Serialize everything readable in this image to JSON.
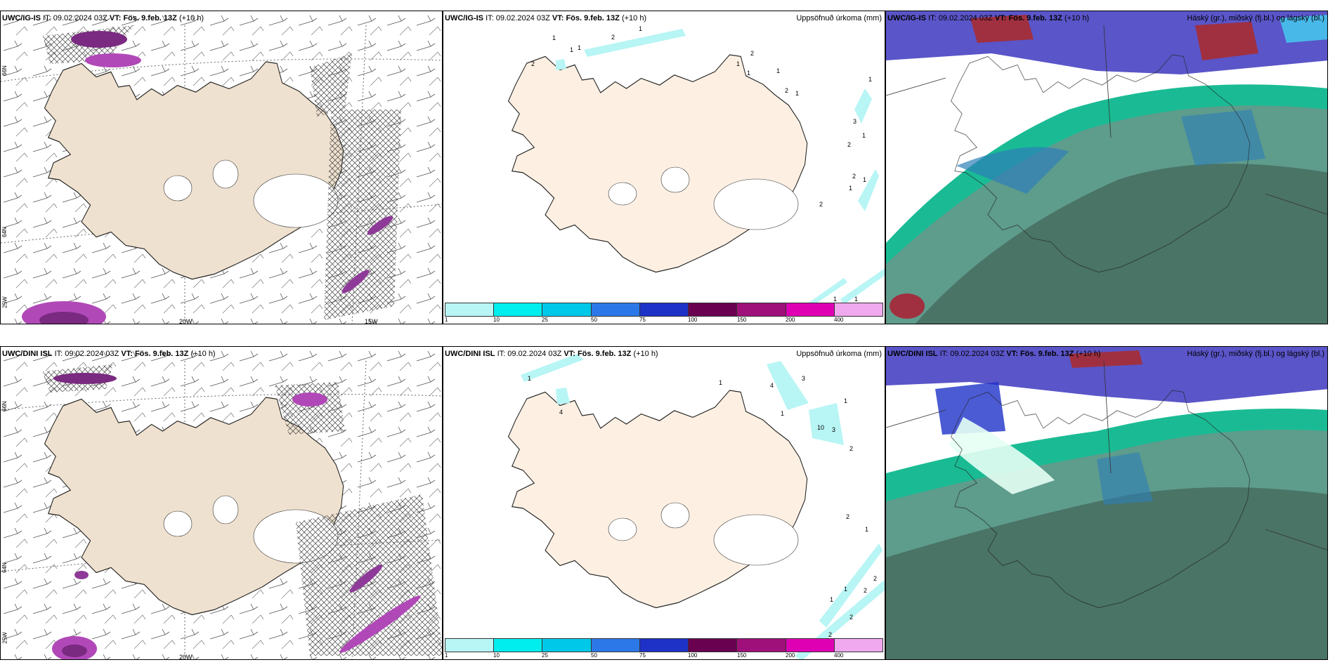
{
  "rows": [
    {
      "model": "UWC/IG-IS",
      "it_label": "IT:",
      "it": "09.02.2024 03Z",
      "vt_label": "VT:",
      "vt": "Fös. 9.feb. 13Z",
      "lead": "(+10 h)"
    },
    {
      "model": "UWC/DINI ISL",
      "it_label": "IT:",
      "it": "09.02.2024 03Z",
      "vt_label": "VT:",
      "vt": "Fös. 9.feb. 13Z",
      "lead": "(+10 h)"
    }
  ],
  "precip_title": "Uppsöfnuð úrkoma (mm)",
  "cloud_title": "Háský (gr.), miðský (fj.bl.) og lágský (bl.)",
  "lat_labels": {
    "n66": "66N",
    "n64": "64N",
    "n65": "65N"
  },
  "lon_labels": {
    "w20": "20W",
    "w15": "15W",
    "w25": "25W"
  },
  "colorbar": {
    "ticks": [
      "1",
      "10",
      "25",
      "50",
      "75",
      "100",
      "150",
      "200",
      "400"
    ],
    "colors": [
      "#b8f5f5",
      "#00eeee",
      "#00c8e8",
      "#2c78e8",
      "#1e32c8",
      "#6a0050",
      "#a0107a",
      "#e000b4",
      "#f0a8ee"
    ]
  },
  "precip_values_top": [
    "1",
    "1",
    "1",
    "2",
    "1",
    "2",
    "1",
    "1",
    "2",
    "1",
    "2",
    "1",
    "1",
    "3",
    "1",
    "2",
    "1",
    "1",
    "2",
    "1",
    "2",
    "1"
  ],
  "precip_values_bottom": [
    "1",
    "4",
    "4",
    "3",
    "1",
    "1",
    "10",
    "3",
    "1",
    "2",
    "2",
    "1",
    "1",
    "1",
    "2",
    "2",
    "2",
    "2"
  ]
}
